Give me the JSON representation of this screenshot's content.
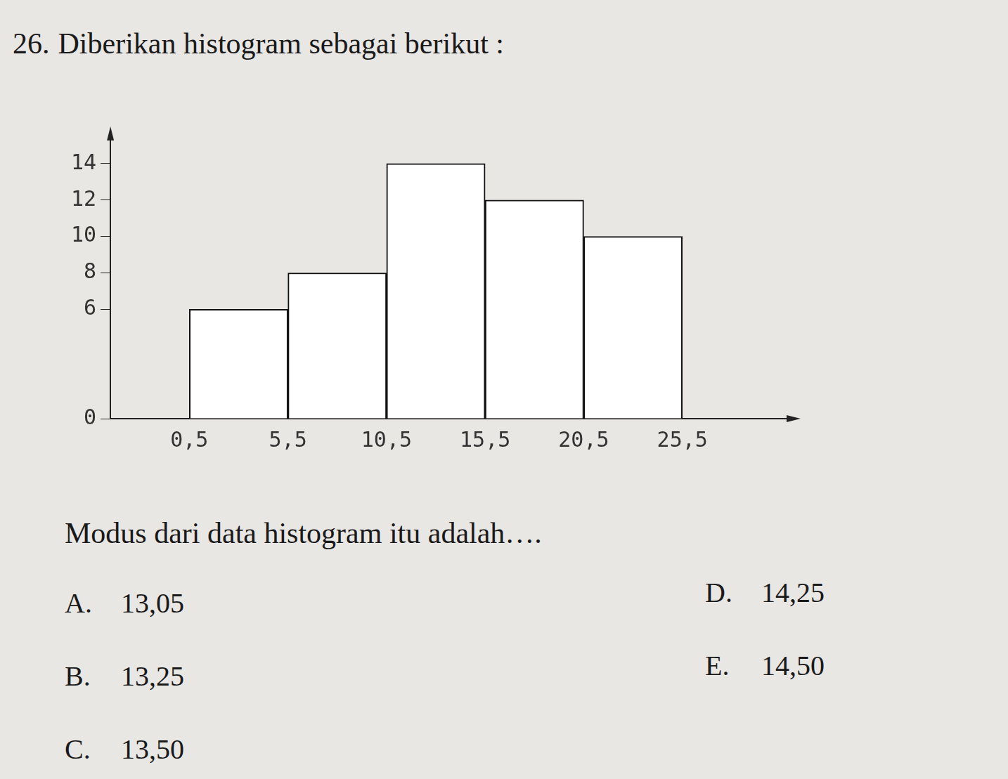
{
  "question": {
    "number": "26.",
    "text": "Diberikan histogram sebagai berikut :",
    "prompt": "Modus dari data histogram itu adalah….",
    "options": [
      {
        "letter": "A.",
        "text": "13,05"
      },
      {
        "letter": "B.",
        "text": "13,25"
      },
      {
        "letter": "C.",
        "text": "13,50"
      },
      {
        "letter": "D.",
        "text": "14,25"
      },
      {
        "letter": "E.",
        "text": "14,50"
      }
    ]
  },
  "chart_data": {
    "type": "histogram",
    "bins": [
      0.5,
      5.5,
      10.5,
      15.5,
      20.5,
      25.5
    ],
    "counts": [
      6,
      8,
      14,
      12,
      10
    ],
    "color": "#ffffff",
    "xlim": [
      -3.5,
      31
    ],
    "xticks": [
      {
        "value": 0.5,
        "label": "0,5"
      },
      {
        "value": 5.5,
        "label": "5,5"
      },
      {
        "value": 10.5,
        "label": "10,5"
      },
      {
        "value": 15.5,
        "label": "15,5"
      },
      {
        "value": 20.5,
        "label": "20,5"
      },
      {
        "value": 25.5,
        "label": "25,5"
      }
    ],
    "ylim": [
      0,
      15.5
    ],
    "yticks": [
      0,
      6,
      8,
      10,
      12,
      14
    ],
    "grid": false
  }
}
